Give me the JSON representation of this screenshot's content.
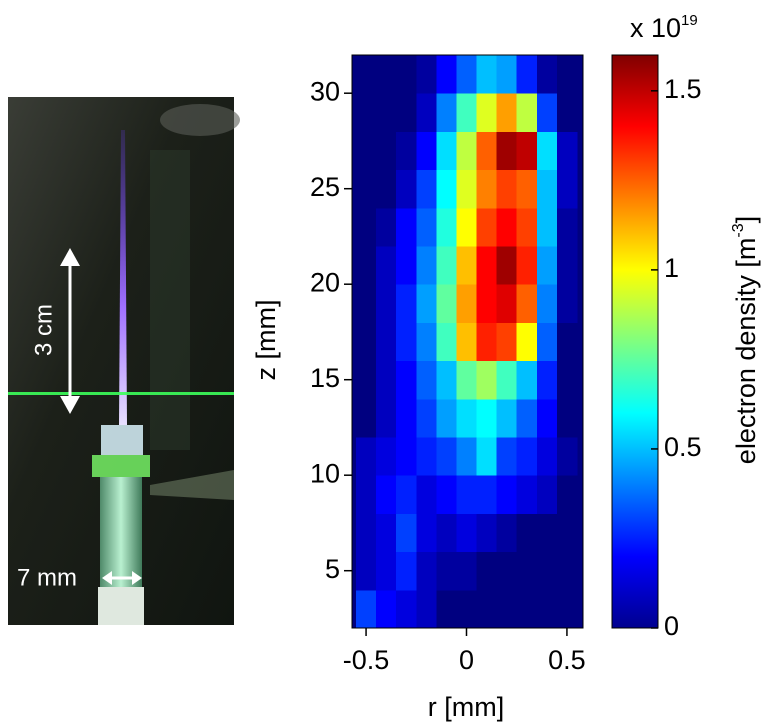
{
  "photo": {
    "height_label": "3 cm",
    "width_label": "7 mm"
  },
  "chart_data": {
    "type": "contour",
    "xlabel": "r [mm]",
    "ylabel": "z [mm]",
    "x": [
      -0.5,
      -0.4,
      -0.3,
      -0.2,
      -0.1,
      0,
      0.1,
      0.2,
      0.3,
      0.4,
      0.5
    ],
    "y": [
      3,
      5,
      7,
      9,
      11,
      13,
      15,
      17,
      19,
      21,
      23,
      25,
      27,
      29,
      31
    ],
    "z": [
      [
        0.3,
        0.2,
        0.15,
        0.1,
        0,
        0,
        0,
        0,
        0,
        0,
        0
      ],
      [
        0.1,
        0.15,
        0.25,
        0.1,
        0.05,
        0.05,
        0,
        0,
        0,
        0,
        0
      ],
      [
        0.1,
        0.15,
        0.3,
        0.15,
        0.1,
        0.15,
        0.1,
        0.05,
        0,
        0,
        0
      ],
      [
        0.1,
        0.2,
        0.25,
        0.15,
        0.2,
        0.25,
        0.25,
        0.2,
        0.15,
        0.1,
        0
      ],
      [
        0.1,
        0.15,
        0.2,
        0.25,
        0.3,
        0.4,
        0.55,
        0.3,
        0.25,
        0.15,
        0.05
      ],
      [
        0,
        0.1,
        0.2,
        0.3,
        0.45,
        0.55,
        0.6,
        0.5,
        0.35,
        0.2,
        0
      ],
      [
        0,
        0.1,
        0.2,
        0.35,
        0.5,
        0.75,
        0.85,
        0.7,
        0.5,
        0.25,
        0
      ],
      [
        0,
        0.1,
        0.25,
        0.4,
        0.7,
        1.1,
        1.35,
        1.3,
        1.0,
        0.35,
        0
      ],
      [
        0,
        0.1,
        0.25,
        0.45,
        0.75,
        1.15,
        1.4,
        1.45,
        1.25,
        0.4,
        0.05
      ],
      [
        0,
        0.1,
        0.2,
        0.4,
        0.7,
        1.1,
        1.4,
        1.55,
        1.35,
        0.45,
        0.05
      ],
      [
        0,
        0.05,
        0.2,
        0.35,
        0.65,
        1.0,
        1.3,
        1.4,
        1.3,
        0.5,
        0.05
      ],
      [
        0,
        0,
        0.1,
        0.3,
        0.6,
        0.95,
        1.2,
        1.3,
        1.25,
        0.5,
        0.1
      ],
      [
        0,
        0,
        0.05,
        0.2,
        0.55,
        0.9,
        1.25,
        1.55,
        1.5,
        0.55,
        0.1
      ],
      [
        0,
        0,
        0,
        0.1,
        0.4,
        0.7,
        0.95,
        1.15,
        0.9,
        0.3,
        0
      ],
      [
        0,
        0,
        0,
        0.05,
        0.2,
        0.35,
        0.5,
        0.45,
        0.25,
        0.05,
        0
      ]
    ],
    "xlim": [
      -0.57,
      0.58
    ],
    "xticks": [
      -0.5,
      0,
      0.5
    ],
    "ylim": [
      2,
      32
    ],
    "yticks": [
      5,
      10,
      15,
      20,
      25,
      30
    ],
    "colormap": "jet",
    "colorbar": {
      "multiplier": "x 10",
      "exponent": "19",
      "label": "electron density [m",
      "label_sup": "-3",
      "label_end": "]",
      "lim": [
        0,
        1.6
      ],
      "ticks": [
        0,
        0.5,
        1,
        1.5
      ]
    }
  }
}
